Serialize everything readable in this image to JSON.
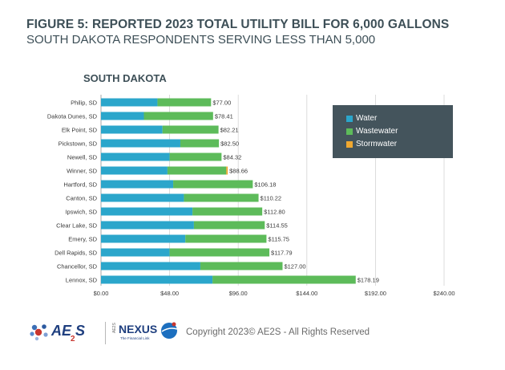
{
  "header": {
    "title": "FIGURE 5: REPORTED 2023 TOTAL UTILITY BILL FOR 6,000 GALLONS",
    "subtitle": "SOUTH DAKOTA RESPONDENTS SERVING LESS THAN 5,000"
  },
  "legend": {
    "water": "Water",
    "wastewater": "Wastewater",
    "stormwater": "Stormwater"
  },
  "colors": {
    "water": "#2ba6cb",
    "wastewater": "#5dbb5a",
    "stormwater": "#f0a830",
    "legend_bg": "#44545c",
    "text": "#3d4f57"
  },
  "chart_data": {
    "type": "bar",
    "orientation": "horizontal",
    "stacked": true,
    "title": "SOUTH DAKOTA",
    "categories": [
      "Philip, SD",
      "Dakota Dunes, SD",
      "Elk Point, SD",
      "Pickstown, SD",
      "Newell, SD",
      "Winner, SD",
      "Hartford, SD",
      "Canton, SD",
      "Ipswich, SD",
      "Clear Lake, SD",
      "Emery, SD",
      "Dell Rapids, SD",
      "Chancellor, SD",
      "Lennox, SD"
    ],
    "series": [
      {
        "name": "Water",
        "values": [
          39.5,
          30.0,
          43.0,
          55.5,
          48.0,
          46.5,
          50.5,
          58.0,
          64.0,
          65.0,
          59.0,
          48.0,
          69.5,
          78.0
        ]
      },
      {
        "name": "Wastewater",
        "values": [
          37.5,
          48.41,
          39.21,
          27.0,
          36.32,
          41.16,
          55.68,
          52.22,
          48.8,
          49.55,
          56.75,
          69.79,
          57.5,
          100.19
        ]
      },
      {
        "name": "Stormwater",
        "values": [
          0,
          0,
          0,
          0,
          0,
          1.0,
          0,
          0,
          0,
          0,
          0,
          0,
          0,
          0
        ]
      }
    ],
    "totals": [
      77.0,
      78.41,
      82.21,
      82.5,
      84.32,
      88.66,
      106.18,
      110.22,
      112.8,
      114.55,
      115.75,
      117.79,
      127.0,
      178.19
    ],
    "total_labels": [
      "$77.00",
      "$78.41",
      "$82.21",
      "$82.50",
      "$84.32",
      "$88.66",
      "$106.18",
      "$110.22",
      "$112.80",
      "$114.55",
      "$115.75",
      "$117.79",
      "$127.00",
      "$178.19"
    ],
    "x_ticks": [
      0,
      48,
      96,
      144,
      192,
      240
    ],
    "x_tick_labels": [
      "$0.00",
      "$48.00",
      "$96.00",
      "$144.00",
      "$192.00",
      "$240.00"
    ],
    "xlim": [
      0,
      240
    ],
    "grid": true,
    "legend_position": "top-right"
  },
  "footer": {
    "logo_text": "AE",
    "logo_sub": "2",
    "logo_s": "S",
    "nexus_small": "AE2S",
    "nexus_text": "NEXUS",
    "nexus_tagline": "The Financial Link",
    "copyright": "Copyright 2023© AE2S - All Rights Reserved"
  }
}
